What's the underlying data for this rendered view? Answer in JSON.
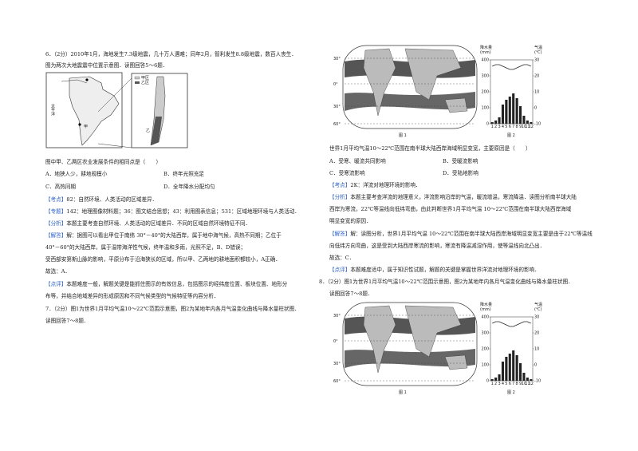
{
  "left": {
    "q6_stem": [
      "6．（2分）2010年1月，海地发生7.3级地震，几十万人遇难；同年2月，智利发生8.8级地震，数百人丧生．",
      "图为两次大地震震中位置示意图．读图回答5～6题．"
    ],
    "fig": {
      "ocean": "太平洋",
      "jia": "甲",
      "yi": "乙",
      "legend": [
        "甲区",
        "乙区"
      ]
    },
    "question": "图中甲、乙两区农业发展条件的相同点是（　　）",
    "options": [
      "A．地狭人少，耕地规模小",
      "B．终年光照充足",
      "C．高热同期",
      "D．全年降水分配均匀"
    ],
    "notes": [
      {
        "tag": "【考点】",
        "text": "82：自然环境、人类活动的区域差异．"
      },
      {
        "tag": "【专题】",
        "text": "142：地理图像材料题；36：图文结合思想；43：利用图表信息；531：区域地理环境与人类活动．"
      },
      {
        "tag": "【分析】",
        "text": "本题主要考查自然环境、人类活动的区域差异．不同的区域自然环境特征不同．"
      },
      {
        "tag": "【解答】",
        "text": "解：据图可以看出甲位于南纬 30°－40°的大陆西岸，属于地中海气候，高热不同期；乙位于"
      }
    ],
    "answer_lines": [
      "40°－60°的大陆西岸，属于温带海洋性气候，终年温和多雨，光照不足，B、D错误；",
      "受西部安第斯山脉的影响，平原分布于沿海狭长的区域，所以甲、乙两地的耕地面积都较小，A正确．",
      "故选：A．"
    ],
    "review": {
      "tag": "【点评】",
      "text": "本题难度一般，解题关键是能抓住图示的有效信息，包括图示的经纬度位置、板块位置、地形分"
    },
    "review_cont": "布等，并结合地域差异的形成原因和不同气候类型的气候特征等内容分析．",
    "q7_stem": [
      "7．（2分）图1为世界1月平均气温10～22℃范围示意图，图2为某地年内各月气温变化曲线与降水量柱状图．",
      "读图回答7～8题．"
    ]
  },
  "right": {
    "question": "世界1月平均气温10～22℃范围在南半球大陆西岸海域明显变宽，主要原因是（　　）",
    "options": [
      "A．受寒、暖流共同影响",
      "B．受暖流影响",
      "C．受寒流影响",
      "D．受陆地影响"
    ],
    "kaodian": {
      "tag": "【考点】",
      "text": "2K：洋流对地理环境的影响．"
    },
    "fenxi": {
      "tag": "【分析】",
      "text": "本题主要考查洋流的地理意义，洋流影响沿岸的气温，暖流增温，寒流降温．读图分析南半球大陆"
    },
    "fenxi_cont": [
      "西岸为寒流，22℃等温线向低纬弯曲，由此判断世界1月平均气温 10～22℃范围在南半球大陆西岸海域",
      "明显变宽的原因．"
    ],
    "jieda": {
      "tag": "【解答】",
      "text": "解：读图分析，世界1月平均气温 10～22℃范围在南半球大陆西岸海域明显变宽主要是由于22℃等温线"
    },
    "jieda_cont": [
      "向低纬方向弯曲，这是受到大陆西岸寒流的影响，寒流有降温减湿作用，使等温线向北凸出．",
      "故选：C．"
    ],
    "review": {
      "tag": "【点评】",
      "text": "本题难度适中，属于知识性试题，解题的关键是掌握世界洋流对地理环境的影响．"
    },
    "q8_stem": [
      "8．（2分）图1为世界1月平均气温10～22℃范围示意图，图2为某地年内各月气温变化曲线与降水量柱状图．",
      "读图回答7～8题．"
    ]
  },
  "world_map": {
    "lat_labels": [
      "30°",
      "0°",
      "30°",
      "60°"
    ],
    "caption": "图 1"
  },
  "climate_chart": {
    "caption": "图 2",
    "precip_label": "降水量",
    "precip_unit": "(mm)",
    "temp_label": "气温",
    "temp_unit": "(℃)",
    "precip_ticks": [
      400,
      300,
      200,
      100,
      0
    ],
    "temp_ticks": [
      30,
      20,
      10,
      0,
      -10
    ],
    "months": [
      1,
      2,
      3,
      4,
      5,
      6,
      7,
      8,
      9,
      10,
      11,
      12
    ],
    "precip": [
      10,
      20,
      40,
      120,
      150,
      170,
      190,
      160,
      110,
      50,
      20,
      10
    ],
    "temp": [
      26,
      27,
      27,
      26,
      25,
      24,
      24,
      25,
      26,
      27,
      27,
      26
    ]
  }
}
